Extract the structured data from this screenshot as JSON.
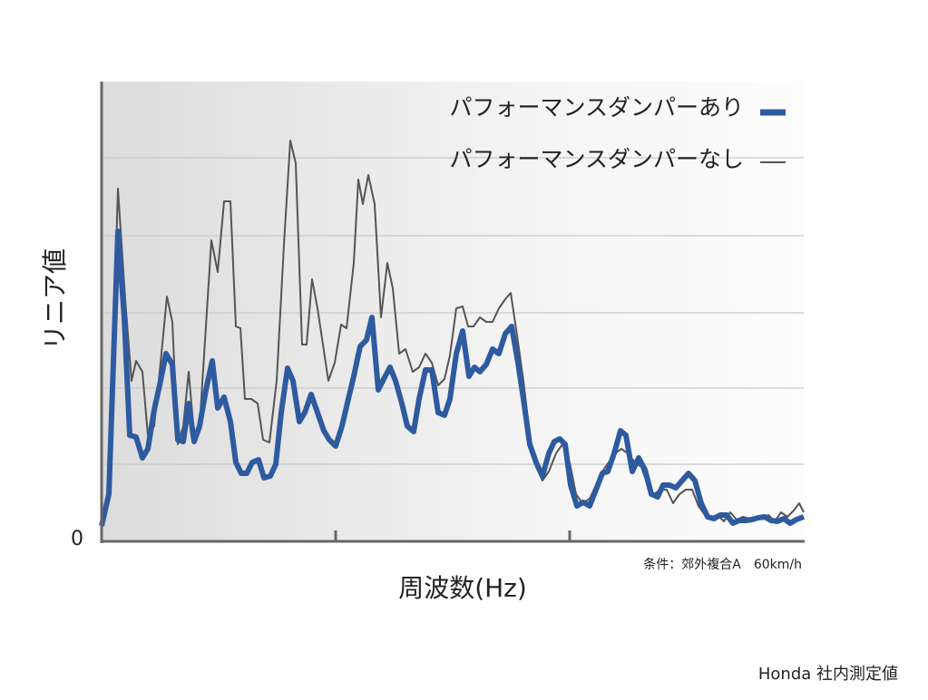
{
  "chart_data": {
    "type": "line",
    "y_label": "リニア値",
    "x_label": "周波数(Hz)",
    "note": "条件：郊外複合A　60km/h",
    "footer": "Honda 社内測定値",
    "xlim": [
      0,
      774
    ],
    "xtick_marks": [
      258,
      516
    ],
    "ylim": [
      0,
      507
    ],
    "yticks": [
      0
    ],
    "ygrid": [
      85,
      169,
      252,
      337,
      423
    ],
    "grid": true,
    "legend": "top-right",
    "series": [
      {
        "name": "パフォーマンスダンパーあり",
        "color": "#2e5aa0",
        "x": [
          0,
          8,
          18,
          25,
          31,
          38,
          45,
          51,
          58,
          65,
          71,
          78,
          84,
          90,
          96,
          102,
          108,
          115,
          122,
          128,
          135,
          142,
          148,
          154,
          160,
          166,
          173,
          179,
          186,
          192,
          198,
          205,
          211,
          218,
          224,
          231,
          238,
          245,
          251,
          258,
          265,
          272,
          278,
          285,
          292,
          298,
          305,
          311,
          318,
          324,
          331,
          337,
          344,
          350,
          357,
          364,
          371,
          378,
          384,
          391,
          398,
          405,
          411,
          417,
          424,
          431,
          438,
          445,
          452,
          459,
          465,
          472,
          479,
          486,
          493,
          499,
          505,
          511,
          517,
          524,
          531,
          538,
          545,
          552,
          558,
          565,
          572,
          578,
          585,
          592,
          599,
          606,
          613,
          619,
          626,
          633,
          640,
          647,
          654,
          661,
          668,
          675,
          682,
          689,
          696,
          703,
          710,
          717,
          724,
          731,
          738,
          745,
          752,
          759,
          766,
          774
        ],
        "values": [
          17,
          52,
          342,
          247,
          117,
          115,
          92,
          102,
          145,
          177,
          207,
          195,
          112,
          110,
          152,
          110,
          127,
          167,
          199,
          147,
          159,
          132,
          87,
          75,
          75,
          87,
          90,
          70,
          72,
          85,
          142,
          191,
          177,
          132,
          142,
          162,
          142,
          122,
          112,
          105,
          127,
          157,
          182,
          215,
          222,
          247,
          167,
          179,
          192,
          177,
          152,
          127,
          121,
          157,
          189,
          189,
          142,
          139,
          157,
          207,
          232,
          182,
          192,
          187,
          195,
          212,
          207,
          229,
          237,
          197,
          157,
          107,
          87,
          72,
          97,
          110,
          113,
          107,
          62,
          39,
          43,
          39,
          57,
          75,
          77,
          97,
          122,
          117,
          77,
          92,
          79,
          52,
          49,
          62,
          62,
          59,
          67,
          75,
          67,
          42,
          27,
          25,
          29,
          29,
          20,
          23,
          23,
          24,
          26,
          27,
          23,
          22,
          25,
          20,
          24,
          27
        ]
      },
      {
        "name": "パフォーマンスダンパーなし",
        "color": "#555555",
        "x": [
          0,
          8,
          18,
          26,
          33,
          38,
          45,
          51,
          58,
          65,
          72,
          78,
          84,
          90,
          96,
          102,
          108,
          115,
          121,
          128,
          135,
          142,
          148,
          153,
          158,
          165,
          172,
          178,
          185,
          193,
          201,
          208,
          214,
          221,
          226,
          232,
          238,
          244,
          250,
          257,
          264,
          270,
          278,
          283,
          288,
          294,
          301,
          308,
          315,
          321,
          328,
          335,
          343,
          350,
          357,
          364,
          371,
          378,
          384,
          391,
          398,
          404,
          410,
          417,
          424,
          431,
          438,
          445,
          451,
          458,
          465,
          472,
          479,
          486,
          493,
          501,
          508,
          516,
          523,
          530,
          538,
          545,
          552,
          559,
          566,
          573,
          580,
          588,
          595,
          602,
          609,
          616,
          623,
          630,
          637,
          644,
          651,
          658,
          665,
          672,
          679,
          686,
          693,
          700,
          707,
          714,
          721,
          728,
          735,
          742,
          749,
          756,
          763,
          769,
          774
        ],
        "values": [
          17,
          57,
          389,
          267,
          177,
          199,
          187,
          117,
          127,
          197,
          270,
          242,
          107,
          127,
          187,
          117,
          127,
          237,
          332,
          297,
          375,
          375,
          237,
          235,
          157,
          157,
          152,
          112,
          109,
          177,
          327,
          442,
          417,
          217,
          217,
          289,
          257,
          217,
          177,
          197,
          239,
          235,
          307,
          399,
          372,
          404,
          372,
          247,
          307,
          279,
          207,
          212,
          187,
          192,
          207,
          197,
          172,
          179,
          205,
          257,
          259,
          237,
          237,
          247,
          242,
          242,
          257,
          267,
          274,
          227,
          177,
          117,
          82,
          67,
          77,
          97,
          107,
          87,
          52,
          42,
          47,
          62,
          77,
          87,
          97,
          102,
          97,
          87,
          82,
          62,
          52,
          57,
          57,
          42,
          52,
          57,
          57,
          39,
          29,
          27,
          29,
          22,
          32,
          24,
          27,
          25,
          27,
          25,
          29,
          22,
          32,
          27,
          34,
          42,
          32
        ]
      }
    ]
  }
}
